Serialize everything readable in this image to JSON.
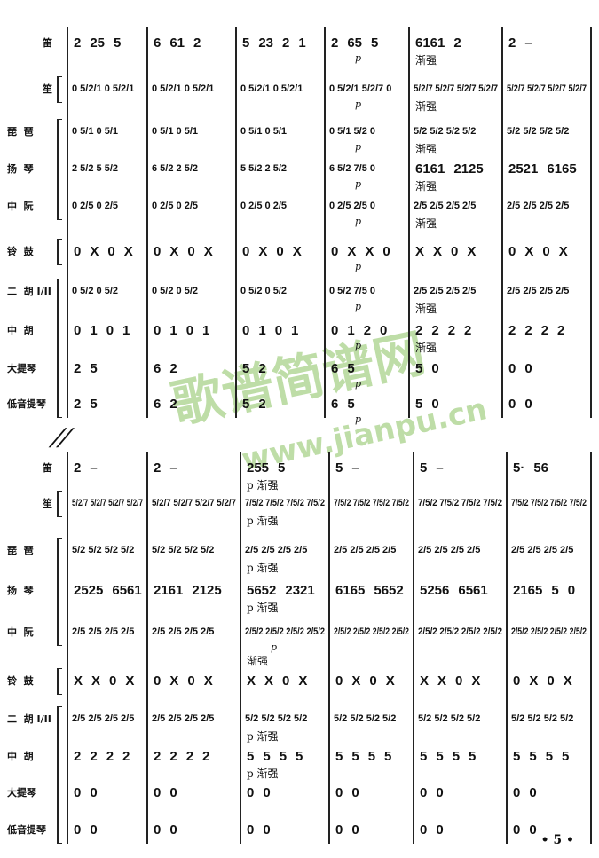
{
  "instruments": [
    "笛",
    "笙",
    "琵  琶",
    "扬  琴",
    "中  阮",
    "铃  鼓",
    "二  胡 I/II",
    "中  胡",
    "大提琴",
    "低音提琴"
  ],
  "systems": [
    {
      "rows": [
        [
          "2 25 5",
          "6 61 2",
          "5 23 2 1",
          "2 65 5",
          "6161 2",
          "2 –"
        ],
        [
          "0 5/2/1 0 5/2/1",
          "0 5/2/1 0 5/2/1",
          "0 5/2/1 0 5/2/1",
          "0 5/2/1 5/2/7 0",
          "5/2/7 5/2/7 5/2/7 5/2/7",
          "5/2/7 5/2/7 5/2/7 5/2/7"
        ],
        [
          "0 5/1 0 5/1",
          "0 5/1 0 5/1",
          "0 5/1 0 5/1",
          "0 5/1 5/2 0",
          "5/2 5/2 5/2 5/2",
          "5/2 5/2 5/2 5/2"
        ],
        [
          "2 5/2 5 5/2",
          "6 5/2 2 5/2",
          "5 5/2 2 5/2",
          "6 5/2 7/5 0",
          "6161 2125",
          "2521 6165"
        ],
        [
          "0 2/5 0 2/5",
          "0 2/5 0 2/5",
          "0 2/5 0 2/5",
          "0 2/5 2/5 0",
          "2/5 2/5 2/5 2/5",
          "2/5 2/5 2/5 2/5"
        ],
        [
          "0 X 0 X",
          "0 X 0 X",
          "0 X 0 X",
          "0 X X 0",
          "X X 0 X",
          "0 X 0 X"
        ],
        [
          "0 5/2 0 5/2",
          "0 5/2 0 5/2",
          "0 5/2 0 5/2",
          "0 5/2 7/5 0",
          "2/5 2/5 2/5 2/5",
          "2/5 2/5 2/5 2/5"
        ],
        [
          "0 1 0 1",
          "0 1 0 1",
          "0 1 0 1",
          "0 1 2 0",
          "2 2 2 2",
          "2 2 2 2"
        ],
        [
          "2 5",
          "6 2",
          "5 2",
          "6 5",
          "5 0",
          "0 0"
        ],
        [
          "2 5",
          "6 2",
          "5 2",
          "6 5",
          "5 0",
          "0 0"
        ]
      ],
      "marks": [
        {
          "row": 0,
          "m": 3,
          "text": "p"
        },
        {
          "row": 1,
          "m": 3,
          "text": "p"
        },
        {
          "row": 2,
          "m": 3,
          "text": "p"
        },
        {
          "row": 3,
          "m": 3,
          "text": "p"
        },
        {
          "row": 4,
          "m": 3,
          "text": "p"
        },
        {
          "row": 5,
          "m": 3,
          "text": "p"
        },
        {
          "row": 6,
          "m": 3,
          "text": "p"
        },
        {
          "row": 7,
          "m": 3,
          "text": "p"
        },
        {
          "row": 8,
          "m": 3,
          "text": "p"
        },
        {
          "row": 9,
          "m": 3,
          "text": "p"
        },
        {
          "row": 0,
          "m": 4,
          "text": "渐强"
        },
        {
          "row": 1,
          "m": 4,
          "text": "渐强"
        },
        {
          "row": 2,
          "m": 4,
          "text": "渐强"
        },
        {
          "row": 3,
          "m": 4,
          "text": "渐强"
        },
        {
          "row": 4,
          "m": 4,
          "text": "渐强"
        },
        {
          "row": 6,
          "m": 4,
          "text": "渐强"
        },
        {
          "row": 7,
          "m": 4,
          "text": "渐强"
        }
      ]
    },
    {
      "rows": [
        [
          "2 –",
          "2 –",
          "255 5",
          "5 –",
          "5 –",
          "5· 56"
        ],
        [
          "5/2/7 5/2/7 5/2/7 5/2/7",
          "5/2/7 5/2/7 5/2/7 5/2/7",
          "7/5/2 7/5/2 7/5/2 7/5/2",
          "7/5/2 7/5/2 7/5/2 7/5/2",
          "7/5/2 7/5/2 7/5/2 7/5/2",
          "7/5/2 7/5/2 7/5/2 7/5/2"
        ],
        [
          "5/2 5/2 5/2 5/2",
          "5/2 5/2 5/2 5/2",
          "2/5 2/5 2/5 2/5",
          "2/5 2/5 2/5 2/5",
          "2/5 2/5 2/5 2/5",
          "2/5 2/5 2/5 2/5"
        ],
        [
          "2525 6561",
          "2161 2125",
          "5652 2321",
          "6165 5652",
          "5256 6561",
          "2165 5 0"
        ],
        [
          "2/5 2/5 2/5 2/5",
          "2/5 2/5 2/5 2/5",
          "2/5/2 2/5/2 2/5/2 2/5/2",
          "2/5/2 2/5/2 2/5/2 2/5/2",
          "2/5/2 2/5/2 2/5/2 2/5/2",
          "2/5/2 2/5/2 2/5/2 2/5/2"
        ],
        [
          "X X 0 X",
          "0 X 0 X",
          "X X 0 X",
          "0 X 0 X",
          "X X 0 X",
          "0 X 0 X"
        ],
        [
          "2/5 2/5 2/5 2/5",
          "2/5 2/5 2/5 2/5",
          "5/2 5/2 5/2 5/2",
          "5/2 5/2 5/2 5/2",
          "5/2 5/2 5/2 5/2",
          "5/2 5/2 5/2 5/2"
        ],
        [
          "2 2 2 2",
          "2 2 2 2",
          "5 5 5 5",
          "5 5 5 5",
          "5 5 5 5",
          "5 5 5 5"
        ],
        [
          "0 0",
          "0 0",
          "0 0",
          "0 0",
          "0 0",
          "0 0"
        ],
        [
          "0 0",
          "0 0",
          "0 0",
          "0 0",
          "0 0",
          "0 0"
        ]
      ],
      "marks": [
        {
          "row": 0,
          "m": 2,
          "text": "p 渐强"
        },
        {
          "row": 1,
          "m": 2,
          "text": "p 渐强"
        },
        {
          "row": 2,
          "m": 2,
          "text": "p 渐强"
        },
        {
          "row": 3,
          "m": 2,
          "text": "p 渐强"
        },
        {
          "row": 4,
          "m": 2,
          "text": "p"
        },
        {
          "row": 4,
          "m": 2,
          "text": "渐强",
          "below": true
        },
        {
          "row": 6,
          "m": 2,
          "text": "p 渐强"
        },
        {
          "row": 7,
          "m": 2,
          "text": "p 渐强"
        }
      ]
    }
  ],
  "watermark": {
    "title": "歌谱简谱网",
    "url": "www.jianpu.cn",
    "color": "#6eb43c"
  },
  "page_number": "• 5 •"
}
